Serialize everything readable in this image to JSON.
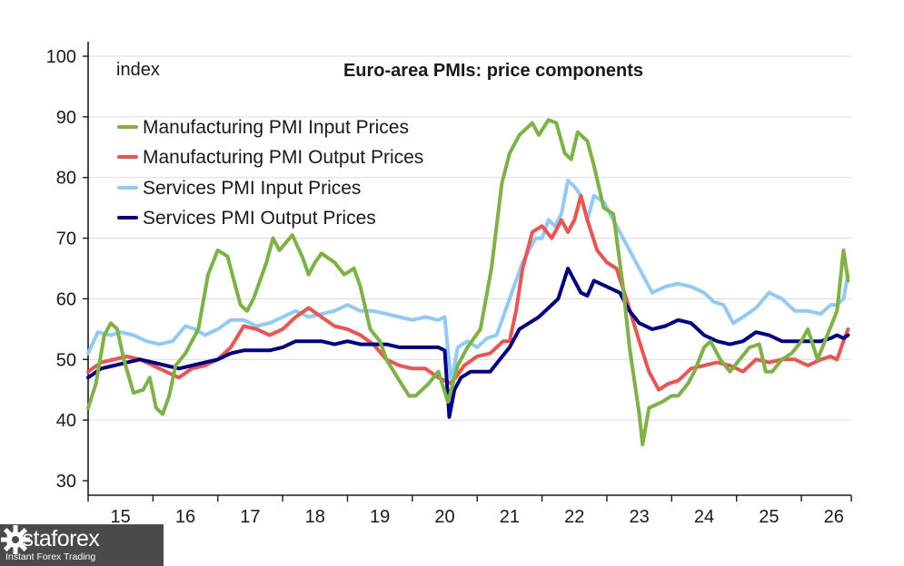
{
  "watermark": {
    "brand": "instaforex",
    "tagline": "Instant Forex Trading",
    "icon": "gear-logo-icon"
  },
  "chart_data": {
    "type": "line",
    "title": "Euro-area PMIs: price components",
    "ylabel": "index",
    "xlabel": "",
    "ylim": [
      30,
      100
    ],
    "yticks": [
      30,
      40,
      50,
      60,
      70,
      80,
      90,
      100
    ],
    "xlim": [
      2014.5,
      2026.27
    ],
    "xtick_labels": [
      "15",
      "16",
      "17",
      "18",
      "19",
      "20",
      "21",
      "22",
      "23",
      "24",
      "25",
      "26"
    ],
    "xtick_centers": [
      2015.0,
      2016.0,
      2017.0,
      2018.0,
      2019.0,
      2020.0,
      2021.0,
      2022.0,
      2023.0,
      2024.0,
      2025.0,
      2026.0
    ],
    "xtick_boundaries": [
      2014.5,
      2015.5,
      2016.5,
      2017.5,
      2018.5,
      2019.5,
      2020.5,
      2021.5,
      2022.5,
      2023.5,
      2024.5,
      2025.5,
      2026.27
    ],
    "grid": true,
    "legend_position": "top-left",
    "series": [
      {
        "name": "Manufacturing PMI Input Prices",
        "color": "#7cb342",
        "x": [
          2014.5,
          2014.62,
          2014.75,
          2014.85,
          2014.95,
          2015.05,
          2015.2,
          2015.35,
          2015.45,
          2015.55,
          2015.65,
          2015.75,
          2015.85,
          2016.0,
          2016.1,
          2016.2,
          2016.35,
          2016.5,
          2016.65,
          2016.85,
          2016.95,
          2017.05,
          2017.25,
          2017.35,
          2017.45,
          2017.65,
          2017.8,
          2017.9,
          2018.0,
          2018.1,
          2018.3,
          2018.45,
          2018.6,
          2018.7,
          2018.85,
          2019.0,
          2019.1,
          2019.3,
          2019.45,
          2019.55,
          2019.75,
          2019.9,
          2020.05,
          2020.2,
          2020.35,
          2020.55,
          2020.72,
          2020.88,
          2021.0,
          2021.15,
          2021.35,
          2021.45,
          2021.6,
          2021.72,
          2021.85,
          2021.95,
          2022.05,
          2022.2,
          2022.3,
          2022.45,
          2022.6,
          2022.75,
          2022.85,
          2023.0,
          2023.05,
          2023.15,
          2023.35,
          2023.5,
          2023.6,
          2023.75,
          2023.85,
          2024.0,
          2024.1,
          2024.25,
          2024.4,
          2024.55,
          2024.7,
          2024.85,
          2024.95,
          2025.05,
          2025.2,
          2025.35,
          2025.5,
          2025.6,
          2025.75,
          2025.9,
          2026.05,
          2026.15,
          2026.22
        ],
        "values": [
          42,
          46,
          54,
          56,
          55,
          50,
          44.5,
          45,
          47,
          42,
          41,
          44,
          49,
          51,
          53,
          55,
          64,
          68,
          67,
          59,
          58,
          60,
          66,
          70,
          68,
          70.5,
          67,
          64,
          66,
          67.5,
          66,
          64,
          65,
          62,
          55,
          53,
          50,
          46.5,
          44,
          44,
          46,
          48,
          43,
          49,
          52,
          55,
          65,
          79,
          84,
          87,
          89,
          87,
          89.5,
          89,
          84,
          83,
          87.5,
          86,
          82,
          75,
          74,
          62,
          52,
          41,
          36,
          42,
          43,
          44,
          44,
          46,
          48,
          52,
          53,
          50,
          48,
          50,
          52,
          52.5,
          48,
          48,
          50,
          51,
          53,
          55,
          50,
          54,
          58,
          68,
          63
        ]
      },
      {
        "name": "Manufacturing PMI Output Prices",
        "color": "#ef5350",
        "x": [
          2014.5,
          2014.7,
          2014.9,
          2015.1,
          2015.3,
          2015.5,
          2015.7,
          2015.9,
          2016.1,
          2016.3,
          2016.5,
          2016.7,
          2016.9,
          2017.1,
          2017.3,
          2017.5,
          2017.7,
          2017.9,
          2018.1,
          2018.3,
          2018.5,
          2018.7,
          2018.9,
          2019.1,
          2019.3,
          2019.5,
          2019.7,
          2019.9,
          2020.1,
          2020.3,
          2020.5,
          2020.7,
          2020.9,
          2021.0,
          2021.1,
          2021.2,
          2021.35,
          2021.5,
          2021.65,
          2021.8,
          2021.9,
          2022.0,
          2022.1,
          2022.2,
          2022.35,
          2022.5,
          2022.65,
          2022.8,
          2023.0,
          2023.15,
          2023.3,
          2023.45,
          2023.6,
          2023.8,
          2024.0,
          2024.2,
          2024.4,
          2024.6,
          2024.8,
          2025.0,
          2025.2,
          2025.4,
          2025.6,
          2025.8,
          2025.95,
          2026.05,
          2026.15,
          2026.22
        ],
        "values": [
          48,
          49.5,
          50,
          50.5,
          50,
          49,
          48,
          47,
          48.5,
          49,
          50,
          52,
          55.5,
          55,
          54,
          55,
          57,
          58.5,
          57,
          55.5,
          55,
          54,
          52.5,
          50,
          49,
          48.5,
          48.5,
          47,
          46,
          49,
          50.5,
          51,
          53,
          53,
          58,
          65,
          71,
          72,
          70,
          73,
          71,
          73,
          77,
          73,
          68,
          66,
          65,
          60,
          53,
          48,
          45,
          46,
          46.5,
          48.5,
          49,
          49.5,
          49,
          48,
          50,
          49.5,
          50,
          50,
          49,
          50,
          50.5,
          50,
          53,
          55
        ]
      },
      {
        "name": "Services PMI Input Prices",
        "color": "#90caf9",
        "x": [
          2014.5,
          2014.65,
          2014.85,
          2015.0,
          2015.2,
          2015.4,
          2015.6,
          2015.8,
          2016.0,
          2016.15,
          2016.3,
          2016.5,
          2016.7,
          2016.9,
          2017.1,
          2017.3,
          2017.5,
          2017.7,
          2017.9,
          2018.1,
          2018.3,
          2018.5,
          2018.7,
          2018.9,
          2019.1,
          2019.3,
          2019.5,
          2019.7,
          2019.9,
          2020.0,
          2020.1,
          2020.2,
          2020.35,
          2020.5,
          2020.65,
          2020.8,
          2021.0,
          2021.2,
          2021.4,
          2021.5,
          2021.6,
          2021.7,
          2021.8,
          2021.9,
          2022.0,
          2022.1,
          2022.2,
          2022.3,
          2022.45,
          2022.6,
          2022.75,
          2022.9,
          2023.0,
          2023.2,
          2023.4,
          2023.6,
          2023.8,
          2024.0,
          2024.15,
          2024.3,
          2024.45,
          2024.6,
          2024.8,
          2025.0,
          2025.2,
          2025.4,
          2025.6,
          2025.8,
          2025.95,
          2026.05,
          2026.15,
          2026.22
        ],
        "values": [
          51,
          54.5,
          54,
          54.5,
          54,
          53,
          52.5,
          53,
          55.5,
          55,
          54,
          55,
          56.5,
          56.5,
          55.5,
          56,
          57,
          58,
          57,
          57.5,
          58,
          59,
          58,
          58,
          57.5,
          57,
          56.5,
          57,
          56.5,
          57,
          46,
          52,
          53,
          52,
          53.5,
          54,
          60,
          66,
          70,
          70,
          73,
          72,
          74,
          79.5,
          78.5,
          77,
          73,
          77,
          76,
          73,
          70,
          67,
          65,
          61,
          62,
          62.5,
          62,
          61,
          59.5,
          59,
          56,
          57,
          58.5,
          61,
          60,
          58,
          58,
          57.5,
          59,
          59,
          60,
          64
        ]
      },
      {
        "name": "Services PMI Output Prices",
        "color": "#00008b",
        "x": [
          2014.5,
          2014.7,
          2014.9,
          2015.1,
          2015.3,
          2015.5,
          2015.7,
          2015.9,
          2016.1,
          2016.3,
          2016.5,
          2016.7,
          2016.9,
          2017.1,
          2017.3,
          2017.5,
          2017.7,
          2017.9,
          2018.1,
          2018.3,
          2018.5,
          2018.7,
          2018.9,
          2019.1,
          2019.3,
          2019.5,
          2019.7,
          2019.9,
          2020.0,
          2020.07,
          2020.15,
          2020.25,
          2020.4,
          2020.55,
          2020.7,
          2020.85,
          2021.0,
          2021.15,
          2021.3,
          2021.45,
          2021.6,
          2021.75,
          2021.9,
          2022.0,
          2022.1,
          2022.2,
          2022.3,
          2022.5,
          2022.7,
          2022.85,
          2023.0,
          2023.2,
          2023.4,
          2023.6,
          2023.8,
          2024.0,
          2024.2,
          2024.4,
          2024.6,
          2024.8,
          2025.0,
          2025.2,
          2025.4,
          2025.6,
          2025.8,
          2025.95,
          2026.05,
          2026.15,
          2026.22
        ],
        "values": [
          47,
          48.5,
          49,
          49.5,
          50,
          49.5,
          49,
          48.5,
          49,
          49.5,
          50,
          51,
          51.5,
          51.5,
          51.5,
          52,
          53,
          53,
          53,
          52.5,
          53,
          52.5,
          52.5,
          52.5,
          52,
          52,
          52,
          52,
          51.5,
          40.5,
          45,
          47,
          48,
          48,
          48,
          50,
          52,
          55,
          56,
          57,
          58.5,
          60,
          65,
          63,
          61,
          60.5,
          63,
          62,
          61,
          58,
          56,
          55,
          55.5,
          56.5,
          56,
          54,
          53,
          52.5,
          53,
          54.5,
          54,
          53,
          53,
          53,
          53,
          53.5,
          54,
          53.5,
          54
        ]
      }
    ]
  }
}
